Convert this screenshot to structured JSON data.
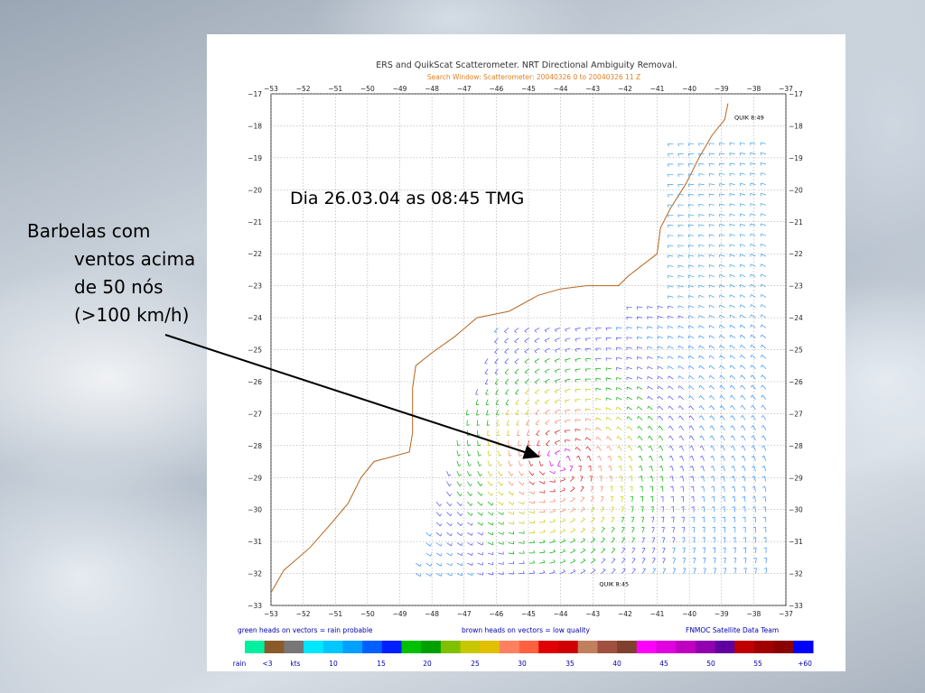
{
  "annotation": {
    "line1": "Barbelas com",
    "line2": "ventos acima",
    "line3": "de 50 nós",
    "line4": "(>100 km/h)"
  },
  "chart_data": {
    "type": "scatter",
    "title": "ERS and QuikScat Scatterometer. NRT Directional Ambiguity Removal.",
    "subtitle": "Search Window: Scatterometer: 20040326 0 to 20040326 11 Z",
    "date_label": "Dia 26.03.04 as 08:45 TMG",
    "xlim": [
      -53,
      -37
    ],
    "ylim": [
      -33,
      -17
    ],
    "x_ticks": [
      -53,
      -52,
      -51,
      -50,
      -49,
      -48,
      -47,
      -46,
      -45,
      -44,
      -43,
      -42,
      -41,
      -40,
      -39,
      -38,
      -37
    ],
    "y_ticks": [
      -17,
      -18,
      -19,
      -20,
      -21,
      -22,
      -23,
      -24,
      -25,
      -26,
      -27,
      -28,
      -29,
      -30,
      -31,
      -32,
      -33
    ],
    "grid": true,
    "pass_labels": [
      {
        "text": "QUIK 8:49",
        "x": -38.6,
        "y": -17.8
      },
      {
        "text": "QUIK 8:45",
        "x": -42.8,
        "y": -32.4
      }
    ],
    "cyclone_center": {
      "x": -44,
      "y": -28.5
    },
    "footer": {
      "left": "green heads on vectors = rain probable",
      "middle": "brown heads on vectors = low quality",
      "right": "FNMOC Satellite Data Team"
    },
    "colorbar": {
      "labels": [
        "rain",
        "<3",
        "kts",
        "10",
        "15",
        "20",
        "25",
        "30",
        "35",
        "40",
        "45",
        "50",
        "55",
        "+60"
      ],
      "colors": [
        "#00f0a0",
        "#8b5a2b",
        "#777777",
        "#00e8ff",
        "#00c8ff",
        "#00a0ff",
        "#0060ff",
        "#0020ff",
        "#00c000",
        "#00a000",
        "#80c000",
        "#c8c800",
        "#e0c000",
        "#ff8060",
        "#ff6040",
        "#e00000",
        "#d00000",
        "#c08060",
        "#a05040",
        "#804030",
        "#ff00ff",
        "#e000e0",
        "#c000c0",
        "#9000b0",
        "#6000a0",
        "#c00000",
        "#a00000",
        "#8b0000",
        "#0000ff"
      ]
    }
  }
}
